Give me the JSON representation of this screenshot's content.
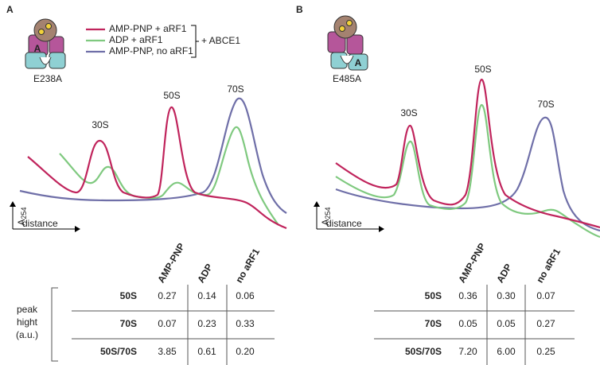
{
  "panel_a": {
    "label": "A",
    "mutant": "E238A",
    "icon_label": "A",
    "legend": [
      "AMP-PNP + aRF1",
      "ADP + aRF1",
      "AMP-PNP, no aRF1"
    ],
    "legend_group": "+ ABCE1",
    "peaks": [
      "30S",
      "50S",
      "70S"
    ],
    "y_axis": {
      "symbol": "A",
      "subscript": "254"
    },
    "x_axis": "distance",
    "columns": [
      "AMP-PNP",
      "ADP",
      "no aRF1"
    ],
    "row_header": [
      "peak",
      "hight",
      "(a.u.)"
    ],
    "rows": [
      [
        "50S",
        "0.27",
        "0.14",
        "0.06"
      ],
      [
        "70S",
        "0.07",
        "0.23",
        "0.33"
      ],
      [
        "50S/70S",
        "3.85",
        "0.61",
        "0.20"
      ]
    ]
  },
  "panel_b": {
    "label": "B",
    "mutant": "E485A",
    "icon_label": "A",
    "peaks": [
      "30S",
      "50S",
      "70S"
    ],
    "y_axis": {
      "symbol": "A",
      "subscript": "254"
    },
    "x_axis": "distance",
    "columns": [
      "AMP-PNP",
      "ADP",
      "no aRF1"
    ],
    "rows": [
      [
        "50S",
        "0.36",
        "0.30",
        "0.07"
      ],
      [
        "70S",
        "0.05",
        "0.05",
        "0.27"
      ],
      [
        "50S/70S",
        "7.20",
        "6.00",
        "0.25"
      ]
    ]
  }
}
